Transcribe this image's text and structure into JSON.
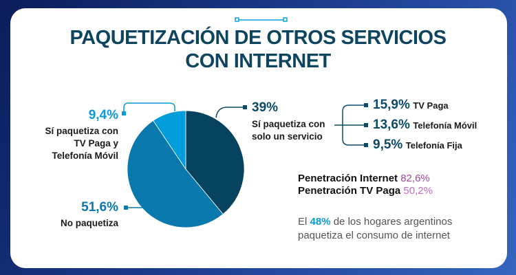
{
  "title_line1": "PAQUETIZACIÓN DE OTROS SERVICIOS",
  "title_line2": "CON INTERNET",
  "chart_data": {
    "type": "pie",
    "slices": [
      {
        "label": "Sí paquetiza con solo un servicio",
        "value": 39,
        "display": "39%",
        "color": "#06435f"
      },
      {
        "label": "No paquetiza",
        "value": 51.6,
        "display": "51,6%",
        "color": "#0878ad"
      },
      {
        "label": "Sí paquetiza con TV Paga y Telefonía Móvil",
        "value": 9.4,
        "display": "9,4%",
        "color": "#009cdc"
      }
    ],
    "label_lines": {
      "single_1": "Sí paquetiza con",
      "single_2": "solo un servicio",
      "tvmovil_1": "Sí paquetiza con",
      "tvmovil_2": "TV Paga y",
      "tvmovil_3": "Telefonía Móvil"
    },
    "breakdown": [
      {
        "value": "15,9%",
        "label": "TV Paga"
      },
      {
        "value": "13,6%",
        "label": "Telefonía Móvil"
      },
      {
        "value": "9,5%",
        "label": "Telefonía Fija"
      }
    ]
  },
  "penetration": [
    {
      "label": "Penetración Internet",
      "value": "82,6%",
      "color": "#9b4a9a"
    },
    {
      "label": "Penetración TV Paga",
      "value": "50,2%",
      "color": "#c06cc0"
    }
  ],
  "note": {
    "pre": "El",
    "highlight": "48%",
    "post": "de los hogares argentinos",
    "line2": "paquetiza el consumo de internet"
  }
}
